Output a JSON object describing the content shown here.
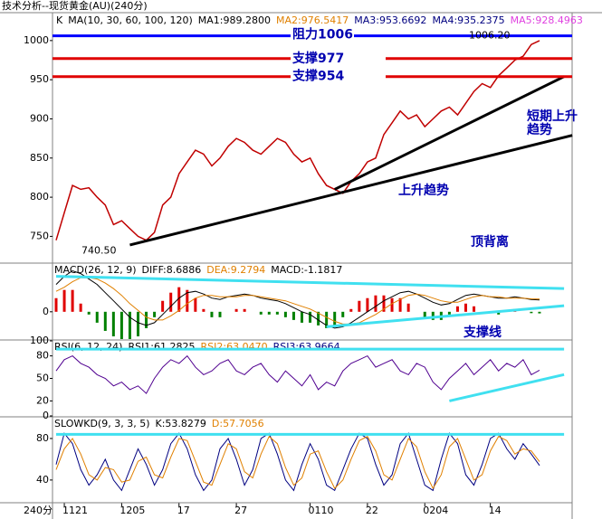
{
  "title": "技术分析--现货黄金(AU)(240分)",
  "chart_data": [
    {
      "type": "line",
      "header": [
        {
          "text": "K",
          "color": "#000"
        },
        {
          "text": "MA(10, 30, 60, 100, 120)",
          "color": "#000"
        },
        {
          "text": "MA1:989.2800",
          "color": "#000"
        },
        {
          "text": "MA2:976.5417",
          "color": "#e08000"
        },
        {
          "text": "MA3:953.6692",
          "color": "#000080"
        },
        {
          "text": "MA4:935.2375",
          "color": "#000080"
        },
        {
          "text": "MA5:928.4963",
          "color": "#e040e0"
        }
      ],
      "categories": [
        null,
        "1121",
        null,
        null,
        null,
        null,
        null,
        null,
        "1205",
        null,
        null,
        null,
        null,
        null,
        null,
        "17",
        null,
        null,
        null,
        null,
        null,
        null,
        "27",
        null,
        null,
        null,
        null,
        null,
        null,
        null,
        null,
        "0110",
        null,
        null,
        null,
        null,
        null,
        null,
        "22",
        null,
        null,
        null,
        null,
        null,
        null,
        "0204",
        null,
        null,
        null,
        null,
        null,
        null,
        null,
        "14",
        null,
        null,
        null,
        null,
        null,
        null
      ],
      "corner_label": "240分",
      "series": [
        {
          "color": "#c00000",
          "values": [
            745,
            780,
            815,
            810,
            812,
            800,
            790,
            765,
            770,
            760,
            750,
            745,
            755,
            790,
            800,
            830,
            845,
            860,
            855,
            840,
            850,
            865,
            875,
            870,
            860,
            855,
            865,
            875,
            870,
            855,
            845,
            850,
            830,
            815,
            810,
            805,
            820,
            830,
            845,
            850,
            880,
            895,
            910,
            900,
            905,
            890,
            900,
            910,
            915,
            905,
            920,
            935,
            945,
            940,
            955,
            965,
            975,
            980,
            995,
            1000
          ]
        }
      ],
      "ylim": [
        717,
        1031
      ],
      "yticks": [
        750,
        800,
        850,
        900,
        950,
        1000
      ],
      "hlines": [
        {
          "value": 1006,
          "color": "#0000ff",
          "label": "阻力1006"
        },
        {
          "value": 977,
          "color": "#e00000",
          "label": "支撑977"
        },
        {
          "value": 954,
          "color": "#e00000",
          "label": "支撑954"
        }
      ],
      "trendlines": [
        {
          "points": [
            [
              9,
              739
            ],
            [
              63,
              879
            ]
          ],
          "color": "#000000"
        },
        {
          "points": [
            [
              34,
              810
            ],
            [
              62,
              954
            ]
          ],
          "color": "#000000"
        }
      ],
      "annotations": [
        "上升趋势",
        "短期上升",
        "趋势",
        "顶背离"
      ],
      "low_label": {
        "value": 740.5,
        "label": "740.50"
      },
      "high_label": {
        "value": 1006.2,
        "label": "1006.20"
      }
    },
    {
      "type": "macd",
      "header": [
        {
          "text": "MACD(26, 12, 9)",
          "color": "#000"
        },
        {
          "text": "DIFF:8.6886",
          "color": "#000"
        },
        {
          "text": "DEA:9.2794",
          "color": "#e08000"
        },
        {
          "text": "MACD:-1.1817",
          "color": "#000"
        }
      ],
      "series": [
        {
          "color": "#000000",
          "values": [
            20,
            26,
            30,
            28,
            24,
            20,
            14,
            8,
            2,
            -4,
            -8,
            -10,
            -8,
            -2,
            4,
            10,
            14,
            15,
            13,
            10,
            9,
            11,
            12,
            13,
            12,
            10,
            9,
            8,
            6,
            3,
            0,
            -2,
            -6,
            -10,
            -12,
            -11,
            -8,
            -4,
            0,
            4,
            8,
            11,
            14,
            15,
            13,
            10,
            7,
            5,
            6,
            9,
            12,
            13,
            12,
            11,
            10,
            10,
            11,
            10,
            9,
            8.7
          ]
        },
        {
          "color": "#e08000",
          "values": [
            15,
            18,
            22,
            25,
            25,
            24,
            21,
            17,
            12,
            6,
            1,
            -4,
            -6,
            -6,
            -3,
            1,
            6,
            10,
            12,
            12,
            11,
            11,
            11,
            12,
            12,
            11,
            10,
            9,
            8,
            6,
            4,
            2,
            -1,
            -4,
            -7,
            -9,
            -9,
            -8,
            -5,
            -2,
            2,
            6,
            9,
            12,
            13,
            12,
            10,
            8,
            7,
            7,
            9,
            11,
            12,
            11,
            11,
            10,
            10,
            10,
            9.5,
            9.3
          ]
        }
      ],
      "bars": [
        10,
        16,
        16,
        6,
        -2,
        -8,
        -14,
        -18,
        -20,
        -20,
        -18,
        -12,
        -4,
        8,
        14,
        18,
        16,
        10,
        2,
        -4,
        -4,
        0,
        2,
        2,
        0,
        -2,
        -2,
        -2,
        -4,
        -6,
        -8,
        -8,
        -10,
        -12,
        -10,
        -4,
        2,
        8,
        10,
        12,
        12,
        10,
        10,
        6,
        0,
        -4,
        -6,
        -6,
        -2,
        4,
        6,
        4,
        0,
        0,
        -2,
        0,
        2,
        0,
        -1,
        -1.2
      ],
      "up_color": "#e00000",
      "down_color": "#008000",
      "ylim": [
        -20,
        35
      ],
      "yticks": [
        0
      ],
      "trendlines": [
        {
          "points": [
            [
              0,
              26
            ],
            [
              62,
              17
            ]
          ],
          "color": "#40e0f0"
        },
        {
          "points": [
            [
              33,
              -11
            ],
            [
              62,
              4.4
            ]
          ],
          "color": "#40e0f0"
        }
      ],
      "annotations": [
        "支撑线"
      ]
    },
    {
      "type": "line",
      "header": [
        {
          "text": "RSI(6, 12, 24)",
          "color": "#000"
        },
        {
          "text": "RSI1:61.2825",
          "color": "#000"
        },
        {
          "text": "RSI2:63.0470",
          "color": "#e08000"
        },
        {
          "text": "RSI3:63.9664",
          "color": "#000080"
        }
      ],
      "series": [
        {
          "color": "#500090",
          "values": [
            60,
            75,
            80,
            70,
            65,
            55,
            50,
            40,
            45,
            35,
            40,
            30,
            50,
            65,
            75,
            70,
            80,
            65,
            55,
            60,
            70,
            75,
            60,
            55,
            65,
            70,
            55,
            45,
            60,
            50,
            40,
            55,
            35,
            45,
            40,
            60,
            70,
            75,
            80,
            65,
            70,
            75,
            60,
            55,
            70,
            65,
            45,
            35,
            50,
            60,
            70,
            55,
            65,
            75,
            60,
            70,
            65,
            75,
            55,
            61
          ]
        }
      ],
      "ylim": [
        0,
        100
      ],
      "yticks": [
        0,
        20,
        50,
        80,
        100
      ],
      "trendlines": [
        {
          "points": [
            [
              0,
              89
            ],
            [
              62,
              89
            ]
          ],
          "color": "#40e0f0"
        },
        {
          "points": [
            [
              48,
              20
            ],
            [
              62,
              55
            ]
          ],
          "color": "#40e0f0"
        }
      ]
    },
    {
      "type": "line",
      "header": [
        {
          "text": "SLOWKD(9, 3, 3, 5)",
          "color": "#000"
        },
        {
          "text": "K:53.8279",
          "color": "#000"
        },
        {
          "text": "D:57.7056",
          "color": "#e08000"
        }
      ],
      "series": [
        {
          "color": "#000080",
          "values": [
            55,
            85,
            75,
            50,
            35,
            45,
            60,
            40,
            30,
            50,
            70,
            55,
            35,
            50,
            75,
            85,
            70,
            45,
            30,
            40,
            70,
            80,
            60,
            35,
            50,
            80,
            85,
            65,
            40,
            30,
            55,
            75,
            60,
            35,
            30,
            50,
            70,
            85,
            80,
            55,
            35,
            45,
            75,
            85,
            60,
            35,
            30,
            60,
            85,
            75,
            45,
            35,
            55,
            80,
            85,
            70,
            60,
            75,
            65,
            54
          ]
        },
        {
          "color": "#e08000",
          "values": [
            50,
            70,
            80,
            65,
            45,
            40,
            52,
            50,
            38,
            40,
            58,
            62,
            45,
            42,
            62,
            80,
            78,
            58,
            38,
            35,
            55,
            75,
            70,
            48,
            42,
            65,
            82,
            75,
            52,
            35,
            42,
            65,
            68,
            48,
            32,
            40,
            60,
            78,
            82,
            68,
            45,
            40,
            60,
            80,
            72,
            48,
            32,
            45,
            72,
            80,
            60,
            40,
            45,
            68,
            82,
            78,
            65,
            70,
            68,
            57.7
          ]
        }
      ],
      "ylim": [
        19,
        100
      ],
      "yticks": [
        40,
        80
      ],
      "trendlines": [
        {
          "points": [
            [
              0,
              84
            ],
            [
              62,
              84
            ]
          ],
          "color": "#40e0f0"
        }
      ]
    }
  ]
}
